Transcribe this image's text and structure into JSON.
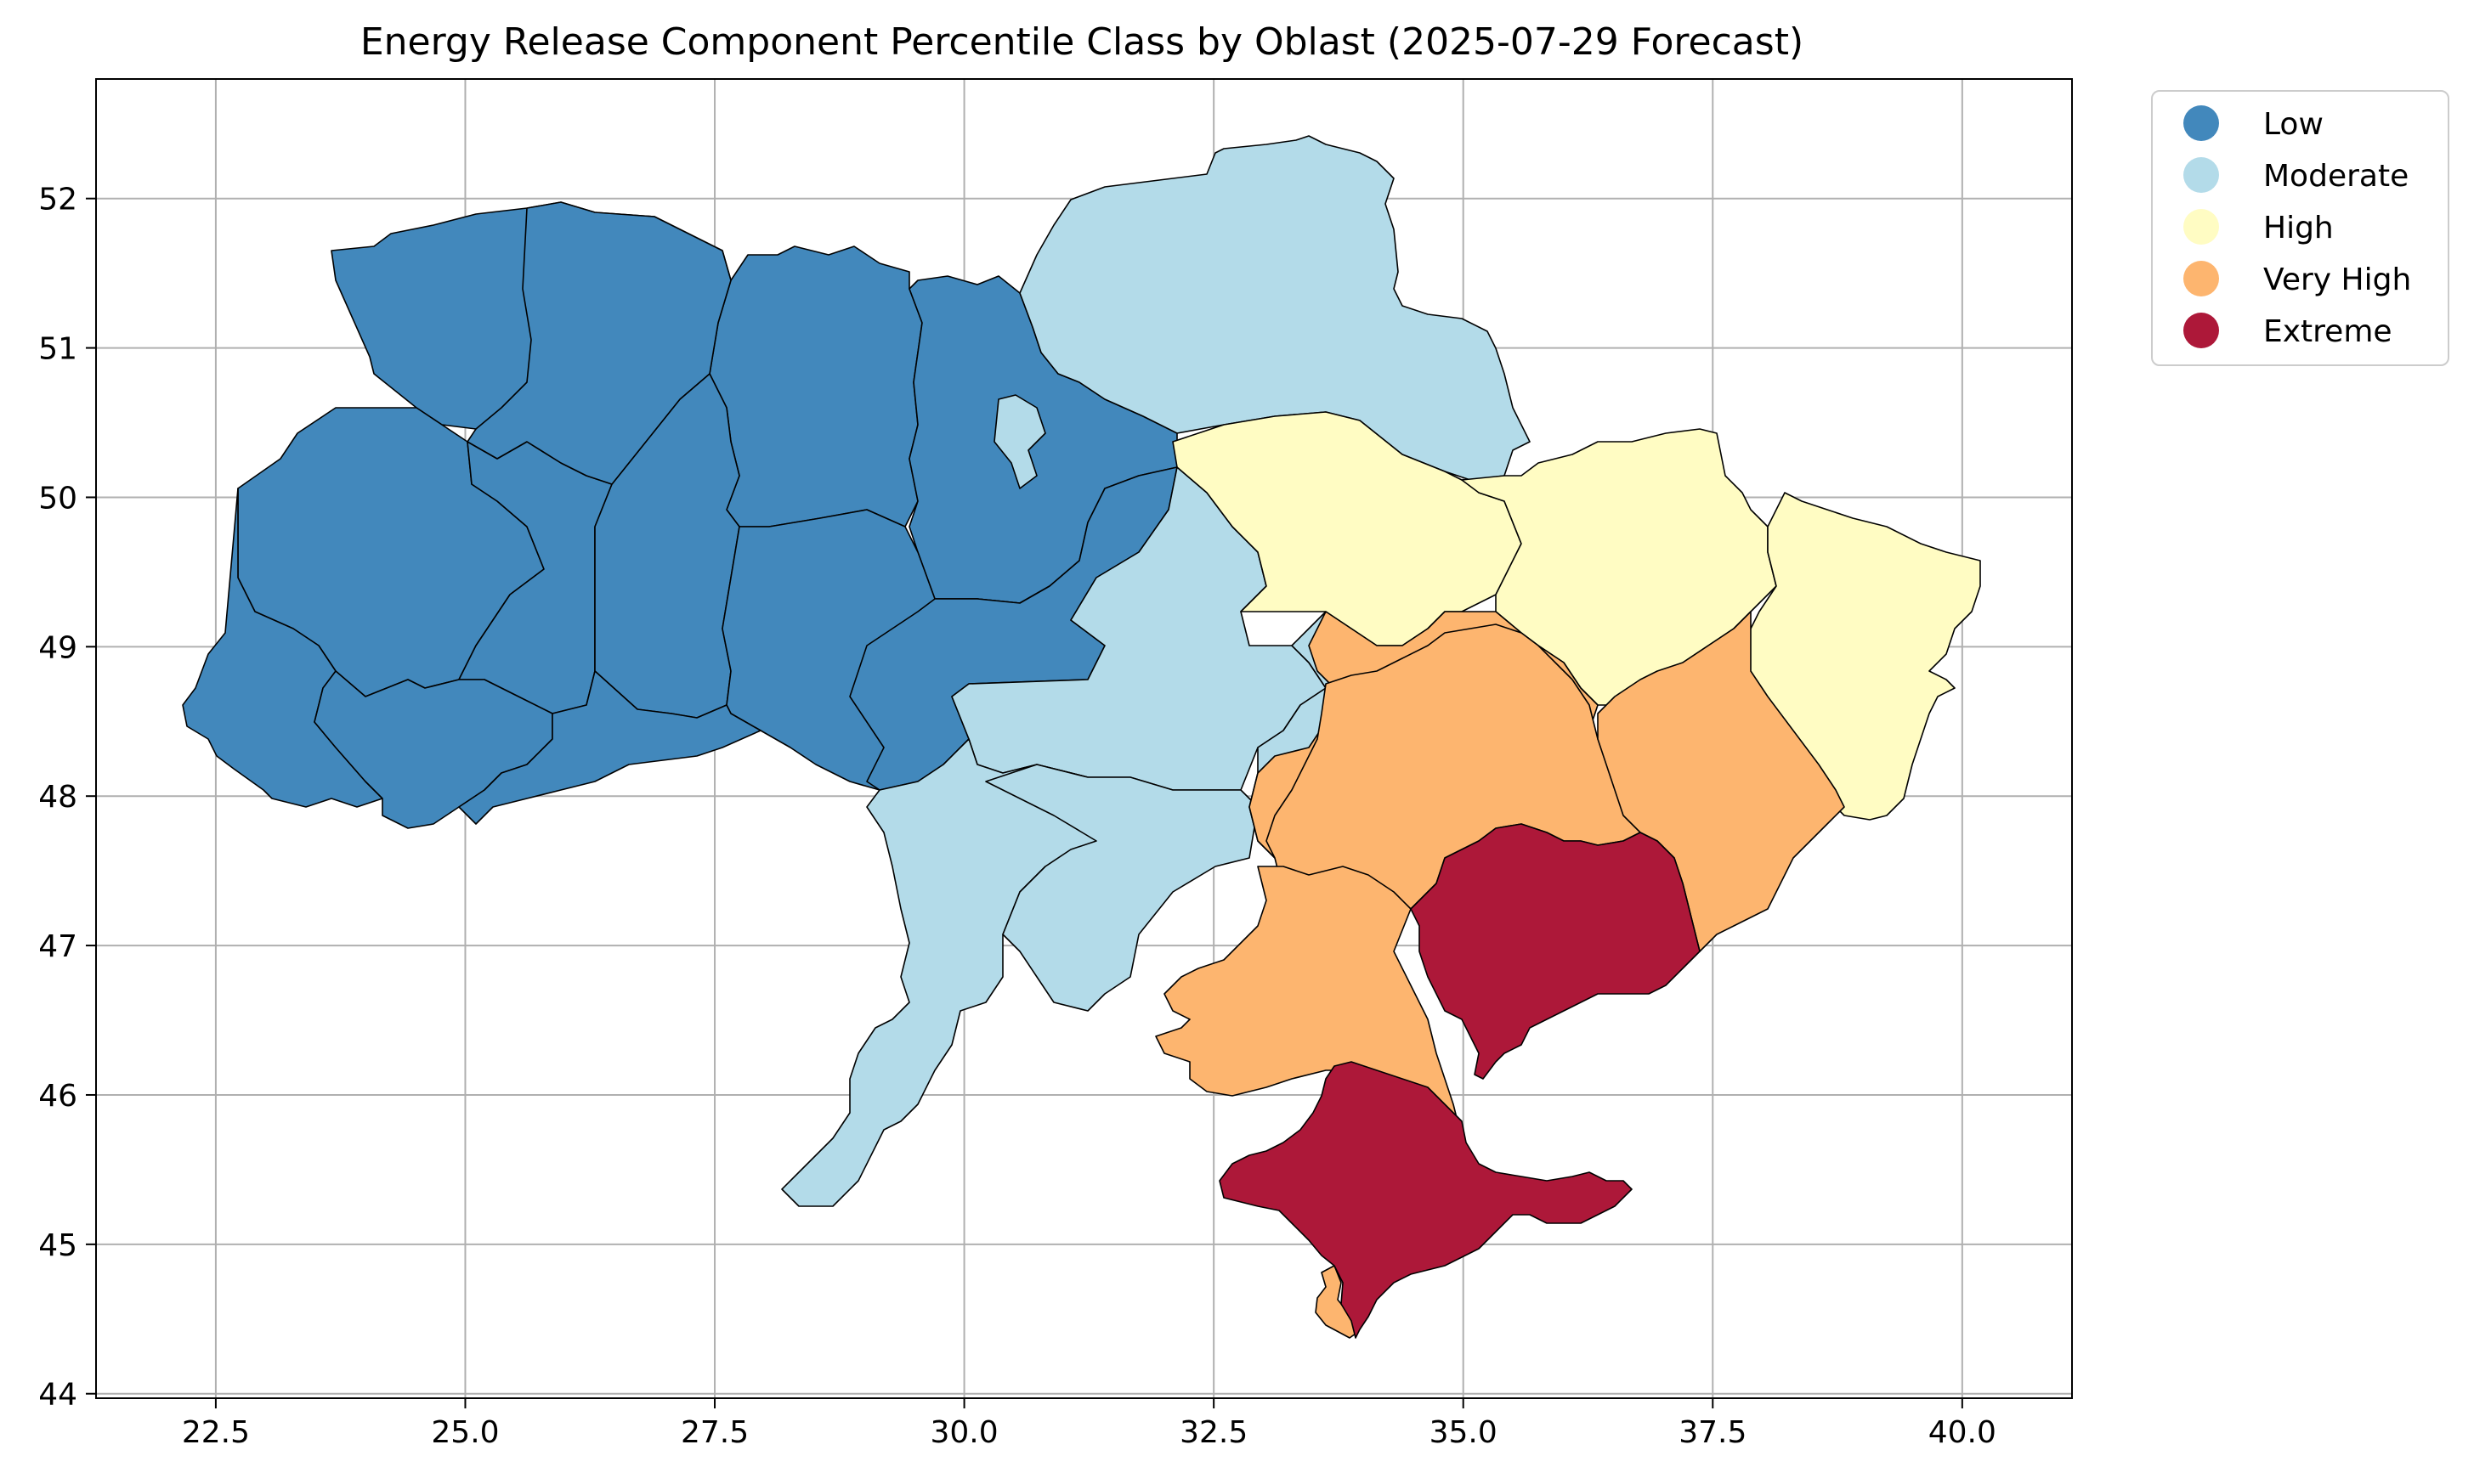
{
  "title": "Energy Release Component Percentile Class by Oblast (2025-07-29 Forecast)",
  "map": {
    "x_ticks": [
      {
        "value": 22.5,
        "label": "22.5"
      },
      {
        "value": 25.0,
        "label": "25.0"
      },
      {
        "value": 27.5,
        "label": "27.5"
      },
      {
        "value": 30.0,
        "label": "30.0"
      },
      {
        "value": 32.5,
        "label": "32.5"
      },
      {
        "value": 35.0,
        "label": "35.0"
      },
      {
        "value": 37.5,
        "label": "37.5"
      },
      {
        "value": 40.0,
        "label": "40.0"
      }
    ],
    "y_ticks": [
      {
        "value": 44,
        "label": "44"
      },
      {
        "value": 45,
        "label": "45"
      },
      {
        "value": 46,
        "label": "46"
      },
      {
        "value": 47,
        "label": "47"
      },
      {
        "value": 48,
        "label": "48"
      },
      {
        "value": 49,
        "label": "49"
      },
      {
        "value": 50,
        "label": "50"
      },
      {
        "value": 51,
        "label": "51"
      },
      {
        "value": 52,
        "label": "52"
      }
    ],
    "xlim": [
      21.3,
      41.1
    ],
    "ylim": [
      43.97,
      52.8
    ],
    "grid": true
  },
  "legend": {
    "placement": "outside-top-right",
    "items": [
      {
        "label": "Low",
        "color": "#4288bc"
      },
      {
        "label": "Moderate",
        "color": "#b3dbe9"
      },
      {
        "label": "High",
        "color": "#fffcc3"
      },
      {
        "label": "Very High",
        "color": "#fdb56f"
      },
      {
        "label": "Extreme",
        "color": "#ad1839"
      }
    ]
  }
}
